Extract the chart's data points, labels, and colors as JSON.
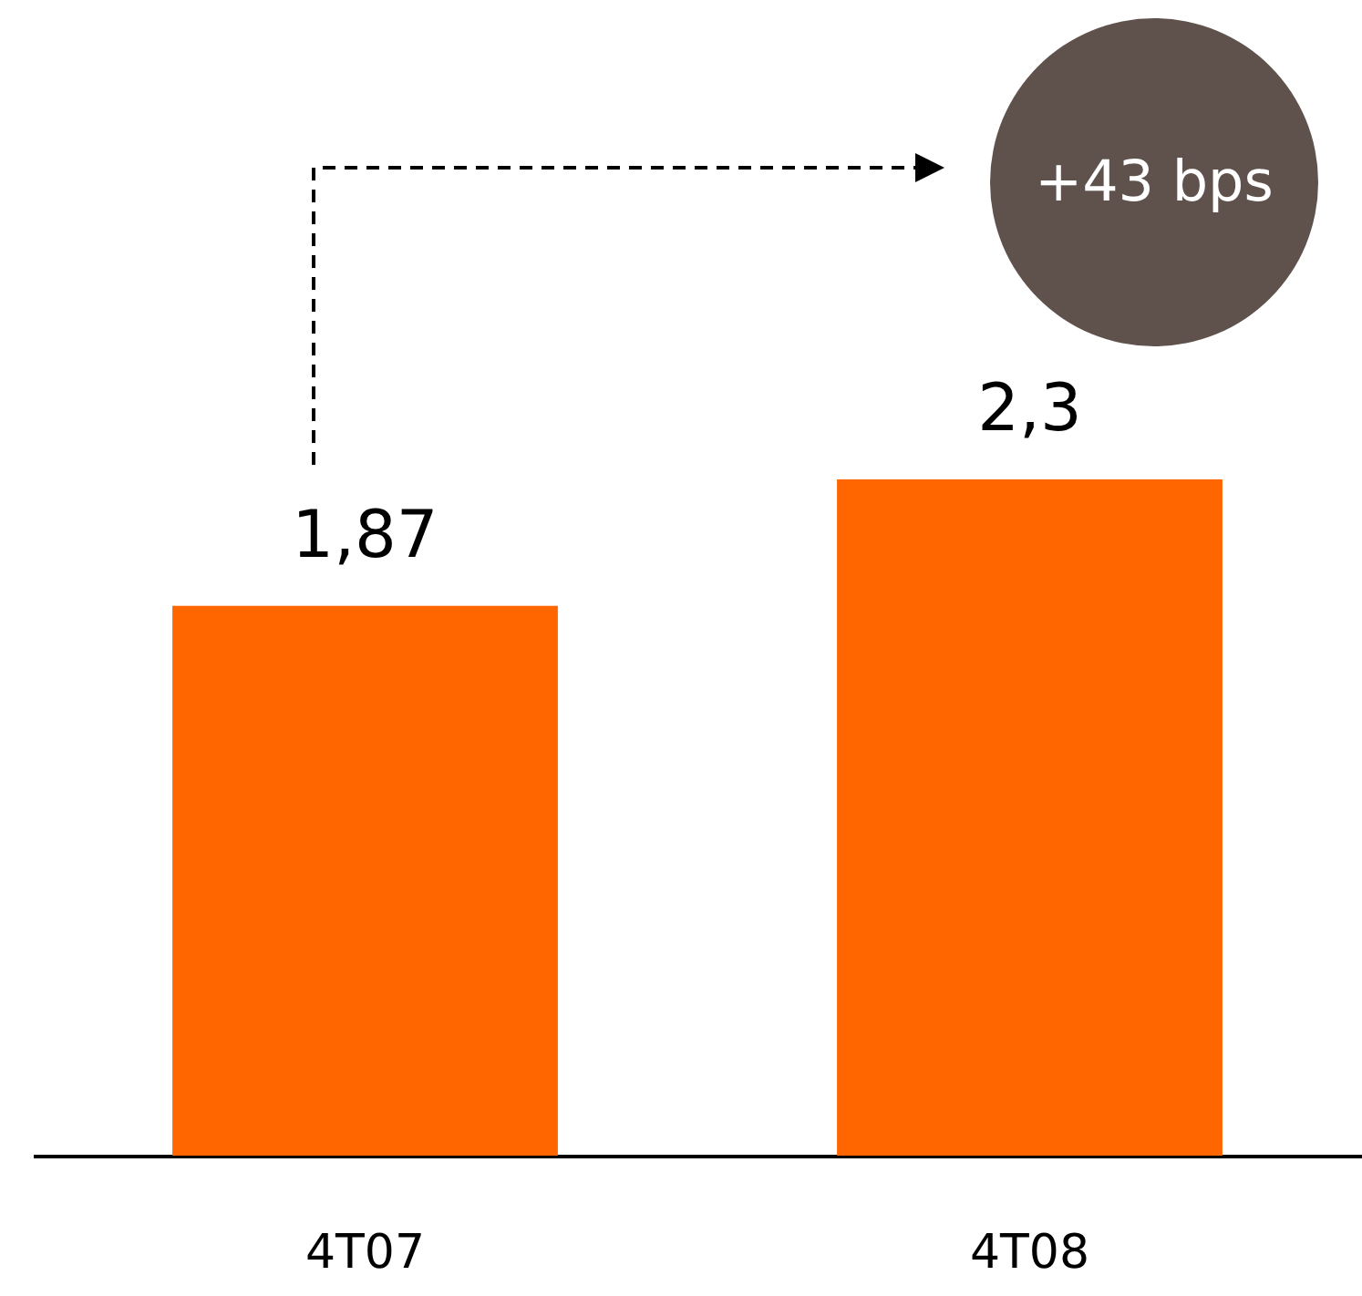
{
  "chart_data": {
    "type": "bar",
    "categories": [
      "4T07",
      "4T08"
    ],
    "series": [
      {
        "color": "#ff6600",
        "values": [
          1.87,
          2.3
        ],
        "value_labels": [
          "1,87",
          "2,3"
        ]
      }
    ],
    "annotations": [
      "+43 bps"
    ]
  }
}
